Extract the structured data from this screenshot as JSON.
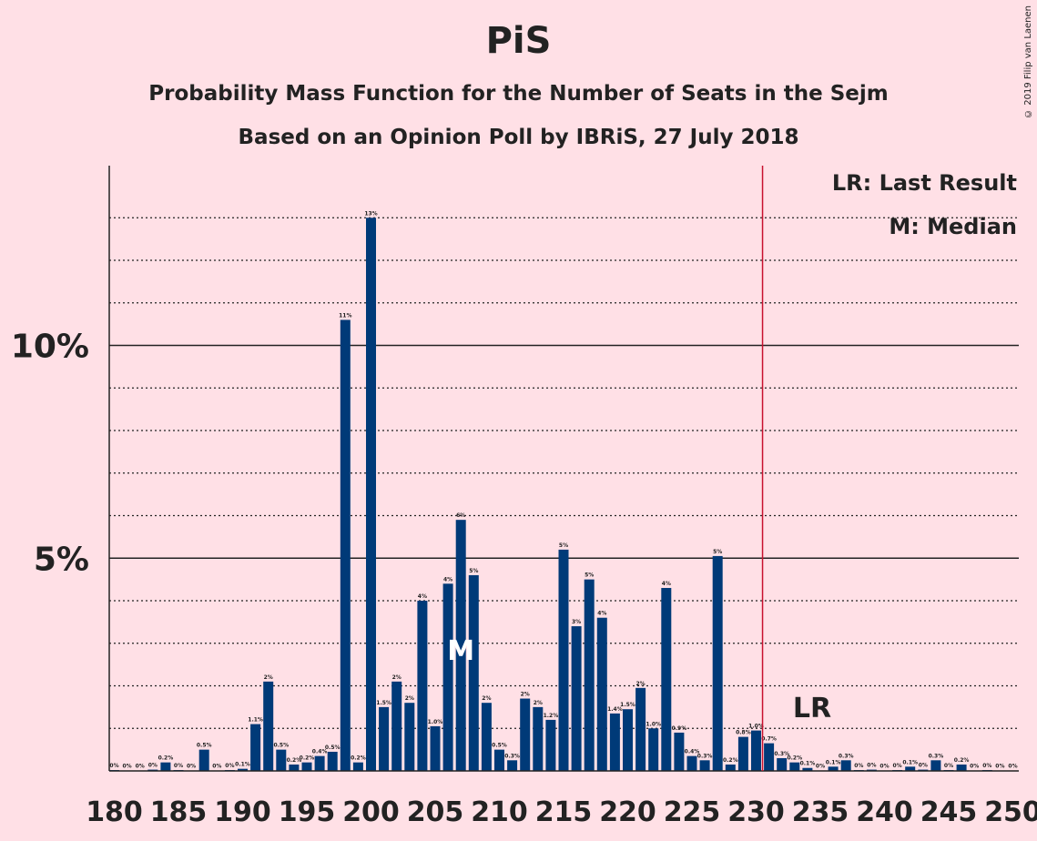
{
  "header": {
    "title": "PiS",
    "subtitle1": "Probability Mass Function for the Number of Seats in the Sejm",
    "subtitle2": "Based on an Opinion Poll by IBRiS, 27 July 2018",
    "copyright": "© 2019 Filip van Laenen"
  },
  "colors": {
    "background": "#FFE0E6",
    "bar": "#003A78",
    "last_result_line": "#C8102E",
    "text": "#222222"
  },
  "chart_data": {
    "type": "bar",
    "title": "PiS",
    "xlabel": "",
    "ylabel": "",
    "x": [
      180,
      181,
      182,
      183,
      184,
      185,
      186,
      187,
      188,
      189,
      190,
      191,
      192,
      193,
      194,
      195,
      196,
      197,
      198,
      199,
      200,
      201,
      202,
      203,
      204,
      205,
      206,
      207,
      208,
      209,
      210,
      211,
      212,
      213,
      214,
      215,
      216,
      217,
      218,
      219,
      220,
      221,
      222,
      223,
      224,
      225,
      226,
      227,
      228,
      229,
      230,
      231,
      232,
      233,
      234,
      235,
      236,
      237,
      238,
      239,
      240,
      241,
      242,
      243,
      244,
      245,
      246,
      247,
      248,
      249,
      250
    ],
    "values": [
      0.02,
      0.01,
      0.01,
      0.03,
      0.2,
      0.02,
      0.01,
      0.5,
      0.01,
      0.02,
      0.05,
      1.1,
      2.1,
      0.5,
      0.15,
      0.2,
      0.35,
      0.45,
      10.6,
      0.2,
      13.0,
      1.5,
      2.1,
      1.6,
      4.0,
      1.05,
      4.4,
      5.9,
      4.6,
      1.6,
      0.5,
      0.25,
      1.7,
      1.5,
      1.2,
      5.2,
      3.4,
      4.5,
      3.6,
      1.35,
      1.45,
      1.95,
      1.0,
      4.3,
      0.9,
      0.35,
      0.25,
      5.05,
      0.15,
      0.8,
      0.95,
      0.65,
      0.3,
      0.2,
      0.07,
      0.01,
      0.1,
      0.25,
      0.02,
      0.03,
      0.01,
      0.02,
      0.1,
      0.03,
      0.25,
      0.02,
      0.15,
      0.01,
      0.02,
      0.01,
      0.01
    ],
    "data_labels": [
      "0%",
      "0%",
      "0%",
      "0%",
      "0.2%",
      "0%",
      "0%",
      "0.5%",
      "0%",
      "0%",
      "0.1%",
      "1.1%",
      "2%",
      "0.5%",
      "0.2%",
      "0.2%",
      "0.4%",
      "0.5%",
      "11%",
      "0.2%",
      "13%",
      "1.5%",
      "2%",
      "2%",
      "4%",
      "1.0%",
      "4%",
      "6%",
      "5%",
      "2%",
      "0.5%",
      "0.3%",
      "2%",
      "2%",
      "1.2%",
      "5%",
      "3%",
      "5%",
      "4%",
      "1.4%",
      "1.5%",
      "2%",
      "1.0%",
      "4%",
      "0.9%",
      "0.4%",
      "0.3%",
      "5%",
      "0.2%",
      "0.8%",
      "1.0%",
      "0.7%",
      "0.3%",
      "0.2%",
      "0.1%",
      "0%",
      "0.1%",
      "0.3%",
      "0%",
      "0%",
      "0%",
      "0%",
      "0.1%",
      "0%",
      "0.3%",
      "0%",
      "0.2%",
      "0%",
      "0%",
      "0%",
      "0%"
    ],
    "x_ticks": [
      180,
      185,
      190,
      195,
      200,
      205,
      210,
      215,
      220,
      225,
      230,
      235,
      240,
      245,
      250
    ],
    "x_tick_labels": [
      "180",
      "185",
      "190",
      "195",
      "200",
      "205",
      "210",
      "215",
      "220",
      "225",
      "230",
      "235",
      "240",
      "245",
      "250"
    ],
    "y_major_ticks": [
      5,
      10
    ],
    "y_tick_labels": [
      "5%",
      "10%"
    ],
    "y_minor_gridlines": [
      1,
      2,
      3,
      4,
      6,
      7,
      8,
      9,
      11,
      12,
      13
    ],
    "ylim": [
      0,
      14
    ],
    "xlim": [
      180,
      250
    ],
    "grid": true,
    "majority_line_x": 230.5,
    "median_seat": 207,
    "median_marker": "M",
    "last_result_seat": 235,
    "last_result_marker": "LR",
    "legend": {
      "placement": "top-right",
      "items": [
        "LR: Last Result",
        "M: Median"
      ]
    }
  }
}
